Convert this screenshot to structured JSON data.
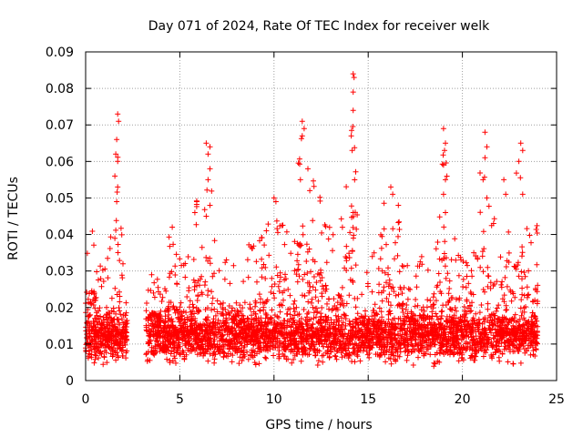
{
  "chart_data": {
    "type": "scatter",
    "title": "Day 071 of 2024, Rate Of TEC Index for receiver welk",
    "xlabel": "GPS time / hours",
    "ylabel": "ROTI / TECUs",
    "xlim": [
      0,
      25
    ],
    "ylim": [
      0,
      0.09
    ],
    "xticks": [
      0,
      5,
      10,
      15,
      20,
      25
    ],
    "yticks": [
      0,
      0.01,
      0.02,
      0.03,
      0.04,
      0.05,
      0.06,
      0.07,
      0.08,
      0.09
    ],
    "xtick_labels": [
      "0",
      "5",
      "10",
      "15",
      "20",
      "25"
    ],
    "ytick_labels": [
      "0",
      "0.01",
      "0.02",
      "0.03",
      "0.04",
      "0.05",
      "0.06",
      "0.07",
      "0.08",
      "0.09"
    ],
    "grid": true,
    "marker": "+",
    "color": "#ff0000",
    "series": [
      {
        "name": "ROTI",
        "background_band": {
          "x_ranges": [
            [
              0.0,
              2.2
            ],
            [
              3.2,
              24.0
            ]
          ],
          "y_median": 0.012,
          "y_spread": 0.006,
          "n_points": 5200,
          "seed": 71
        },
        "envelope": [
          [
            0.0,
            0.046
          ],
          [
            0.5,
            0.04
          ],
          [
            1.0,
            0.03
          ],
          [
            1.5,
            0.045
          ],
          [
            1.7,
            0.073
          ],
          [
            2.0,
            0.03
          ],
          [
            2.2,
            0.02
          ],
          [
            3.2,
            0.032
          ],
          [
            4.0,
            0.03
          ],
          [
            4.5,
            0.042
          ],
          [
            5.0,
            0.035
          ],
          [
            5.8,
            0.049
          ],
          [
            6.3,
            0.05
          ],
          [
            6.5,
            0.065
          ],
          [
            7.0,
            0.04
          ],
          [
            7.5,
            0.035
          ],
          [
            8.0,
            0.032
          ],
          [
            8.7,
            0.038
          ],
          [
            9.3,
            0.04
          ],
          [
            10.0,
            0.05
          ],
          [
            10.7,
            0.045
          ],
          [
            11.5,
            0.071
          ],
          [
            12.0,
            0.058
          ],
          [
            12.5,
            0.05
          ],
          [
            13.0,
            0.043
          ],
          [
            13.5,
            0.04
          ],
          [
            14.2,
            0.084
          ],
          [
            14.5,
            0.03
          ],
          [
            15.0,
            0.03
          ],
          [
            15.5,
            0.04
          ],
          [
            16.0,
            0.053
          ],
          [
            16.5,
            0.048
          ],
          [
            17.0,
            0.035
          ],
          [
            17.5,
            0.03
          ],
          [
            18.0,
            0.036
          ],
          [
            18.5,
            0.04
          ],
          [
            19.0,
            0.069
          ],
          [
            19.5,
            0.04
          ],
          [
            20.0,
            0.035
          ],
          [
            20.5,
            0.038
          ],
          [
            21.0,
            0.068
          ],
          [
            21.5,
            0.045
          ],
          [
            22.0,
            0.055
          ],
          [
            22.5,
            0.04
          ],
          [
            23.0,
            0.065
          ],
          [
            23.5,
            0.04
          ],
          [
            24.0,
            0.044
          ]
        ],
        "spikes": [
          [
            1.7,
            0.073
          ],
          [
            1.75,
            0.071
          ],
          [
            1.65,
            0.066
          ],
          [
            1.6,
            0.062
          ],
          [
            1.7,
            0.06
          ],
          [
            1.55,
            0.056
          ],
          [
            1.7,
            0.053
          ],
          [
            1.65,
            0.049
          ],
          [
            6.4,
            0.065
          ],
          [
            6.6,
            0.064
          ],
          [
            6.5,
            0.062
          ],
          [
            6.6,
            0.058
          ],
          [
            6.5,
            0.055
          ],
          [
            6.6,
            0.048
          ],
          [
            6.4,
            0.045
          ],
          [
            11.5,
            0.071
          ],
          [
            11.6,
            0.069
          ],
          [
            11.5,
            0.067
          ],
          [
            11.8,
            0.058
          ],
          [
            11.4,
            0.055
          ],
          [
            11.9,
            0.052
          ],
          [
            14.2,
            0.084
          ],
          [
            14.25,
            0.083
          ],
          [
            14.2,
            0.079
          ],
          [
            14.2,
            0.074
          ],
          [
            14.1,
            0.067
          ],
          [
            14.15,
            0.063
          ],
          [
            16.2,
            0.053
          ],
          [
            16.3,
            0.051
          ],
          [
            16.6,
            0.048
          ],
          [
            19.0,
            0.069
          ],
          [
            19.1,
            0.065
          ],
          [
            19.05,
            0.063
          ],
          [
            19.0,
            0.059
          ],
          [
            19.1,
            0.055
          ],
          [
            19.0,
            0.051
          ],
          [
            19.1,
            0.046
          ],
          [
            21.2,
            0.068
          ],
          [
            21.3,
            0.064
          ],
          [
            21.2,
            0.061
          ],
          [
            21.1,
            0.055
          ],
          [
            21.3,
            0.05
          ],
          [
            22.2,
            0.055
          ],
          [
            22.3,
            0.051
          ],
          [
            23.1,
            0.065
          ],
          [
            23.2,
            0.063
          ],
          [
            23.0,
            0.06
          ],
          [
            23.2,
            0.051
          ],
          [
            10.0,
            0.05
          ],
          [
            10.1,
            0.049
          ],
          [
            5.9,
            0.049
          ],
          [
            5.8,
            0.046
          ],
          [
            4.6,
            0.042
          ]
        ]
      }
    ]
  }
}
